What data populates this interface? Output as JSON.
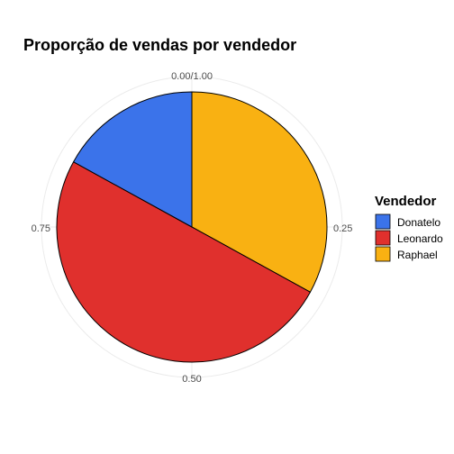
{
  "chart_data": {
    "type": "pie",
    "title": "Proporção de vendas por vendedor",
    "categories": [
      "Donatelo",
      "Leonardo",
      "Raphael"
    ],
    "values": [
      0.17,
      0.5,
      0.33
    ],
    "colors": [
      "#3b73ea",
      "#e0302d",
      "#f9b112"
    ],
    "axis_ticks": [
      "0.00/1.00",
      "0.25",
      "0.50",
      "0.75"
    ],
    "legend": {
      "title": "Vendedor",
      "position": "right",
      "entries": [
        "Donatelo",
        "Leonardo",
        "Raphael"
      ]
    },
    "grid": true
  }
}
